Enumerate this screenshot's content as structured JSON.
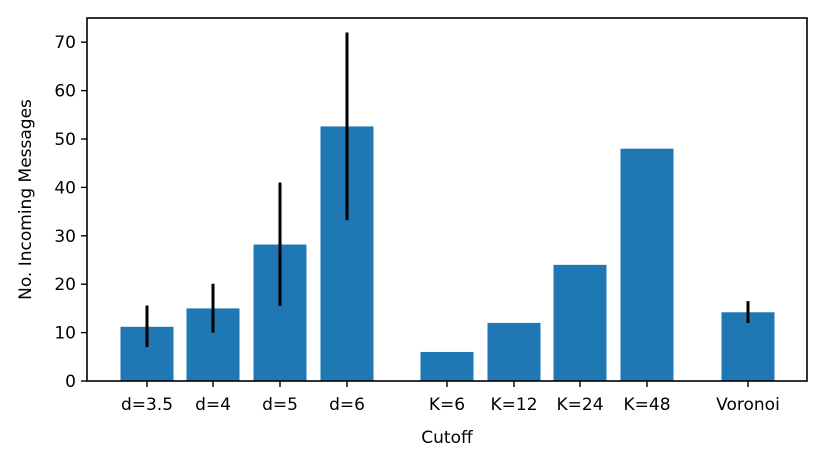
{
  "chart_data": {
    "type": "bar",
    "title": "",
    "xlabel": "Cutoff",
    "ylabel": "No. Incoming Messages",
    "ylim": [
      0,
      75
    ],
    "yticks": [
      0,
      10,
      20,
      30,
      40,
      50,
      60,
      70
    ],
    "bar_color": "#1f77b4",
    "error_color": "#000000",
    "grid": false,
    "categories": [
      "d=3.5",
      "d=4",
      "d=5",
      "d=6",
      "K=6",
      "K=12",
      "K=24",
      "K=48",
      "Voronoi"
    ],
    "values": [
      11.2,
      15.0,
      28.2,
      52.6,
      6.0,
      12.0,
      24.0,
      48.0,
      14.2
    ],
    "error_low": [
      7.0,
      10.0,
      15.5,
      33.2,
      null,
      null,
      null,
      null,
      12.0
    ],
    "error_high": [
      15.6,
      20.1,
      41.0,
      72.0,
      null,
      null,
      null,
      null,
      16.5
    ]
  }
}
